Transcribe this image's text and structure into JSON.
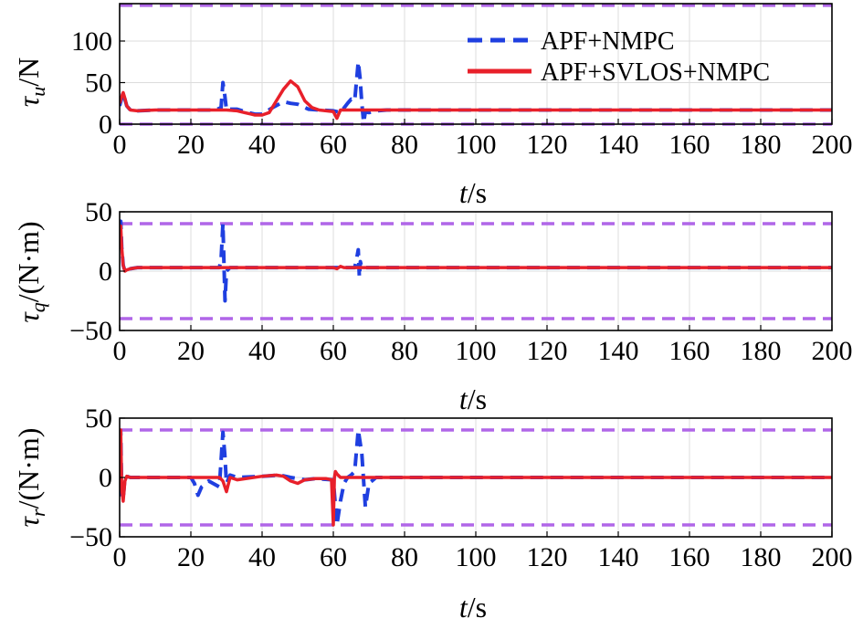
{
  "colors": {
    "apf_nmpc": "#1f3fe0",
    "apf_svlos_nmpc": "#e8202a",
    "limit": "#b066e8",
    "grid": "#dcdcdc"
  },
  "legend": {
    "items": [
      "APF+NMPC",
      "APF+SVLOS+NMPC"
    ]
  },
  "chart_data": [
    {
      "type": "line",
      "ylabel_sym": "τ",
      "ylabel_sub": "u",
      "ylabel_unit": "/N",
      "xlabel_var": "t",
      "xlabel_unit": "/s",
      "xlim": [
        0,
        200
      ],
      "ylim": [
        0,
        145
      ],
      "xticks": [
        0,
        20,
        40,
        60,
        80,
        100,
        120,
        140,
        160,
        180,
        200
      ],
      "yticks": [
        0,
        50,
        100
      ],
      "grid": true,
      "legend_position": "top-right",
      "limits": [
        0,
        143
      ],
      "series": [
        {
          "name": "APF+NMPC",
          "style": "dashed",
          "x": [
            0,
            0.5,
            1,
            1.5,
            2,
            3,
            5,
            10,
            20,
            25,
            27,
            28.5,
            29,
            29.5,
            30,
            31,
            33,
            36,
            38,
            40,
            43,
            46,
            48,
            50,
            53,
            56,
            60,
            62,
            64,
            65,
            66,
            67,
            67.5,
            68,
            68.5,
            69,
            70,
            72,
            75,
            80,
            100,
            150,
            200
          ],
          "y": [
            22,
            30,
            38,
            30,
            22,
            17,
            16,
            17,
            17,
            17,
            17,
            20,
            50,
            35,
            17,
            18,
            18,
            14,
            12,
            12,
            20,
            27,
            25,
            24,
            18,
            17,
            16,
            14,
            25,
            30,
            28,
            75,
            55,
            25,
            2,
            15,
            14,
            16,
            17,
            17,
            17,
            17,
            17
          ]
        },
        {
          "name": "APF+SVLOS+NMPC",
          "style": "solid",
          "x": [
            0,
            0.5,
            1,
            1.5,
            2,
            3,
            5,
            10,
            20,
            30,
            33,
            35,
            37,
            38,
            40,
            42,
            44,
            46,
            48,
            50,
            52,
            54,
            56,
            58,
            60,
            61,
            62,
            63,
            64,
            66,
            68,
            70,
            80,
            100,
            150,
            200
          ],
          "y": [
            25,
            32,
            38,
            31,
            22,
            17,
            16,
            17,
            17,
            17,
            16,
            14,
            12,
            11,
            11,
            14,
            28,
            42,
            52,
            45,
            28,
            20,
            17,
            16,
            15,
            7,
            17,
            17,
            17,
            17,
            17,
            17,
            17,
            17,
            17,
            17
          ]
        }
      ]
    },
    {
      "type": "line",
      "ylabel_sym": "τ",
      "ylabel_sub": "q",
      "ylabel_unit": "/(N·m)",
      "xlabel_var": "t",
      "xlabel_unit": "/s",
      "xlim": [
        0,
        200
      ],
      "ylim": [
        -50,
        50
      ],
      "xticks": [
        0,
        20,
        40,
        60,
        80,
        100,
        120,
        140,
        160,
        180,
        200
      ],
      "yticks": [
        -50,
        0,
        50
      ],
      "grid": true,
      "limits": [
        -40,
        40
      ],
      "series": [
        {
          "name": "APF+NMPC",
          "style": "dashed",
          "x": [
            0,
            0.3,
            0.6,
            1,
            1.5,
            2,
            3,
            5,
            10,
            28,
            28.5,
            29,
            29.3,
            29.6,
            30,
            31,
            40,
            60,
            65,
            66,
            66.5,
            67,
            67.3,
            67.6,
            68,
            69,
            70,
            80,
            100,
            150,
            200
          ],
          "y": [
            38,
            42,
            20,
            5,
            0,
            1,
            2,
            3,
            3,
            3,
            10,
            40,
            5,
            -25,
            0,
            3,
            3,
            3,
            3,
            3,
            10,
            18,
            -5,
            8,
            3,
            3,
            3,
            3,
            3,
            3,
            3
          ]
        },
        {
          "name": "APF+SVLOS+NMPC",
          "style": "solid",
          "x": [
            0,
            0.3,
            0.6,
            1,
            1.5,
            2,
            3,
            5,
            10,
            30,
            60,
            61,
            62,
            63,
            70,
            100,
            150,
            200
          ],
          "y": [
            35,
            38,
            20,
            5,
            0,
            1,
            2,
            3,
            3,
            3,
            3,
            2,
            4,
            3,
            3,
            3,
            3,
            3
          ]
        }
      ]
    },
    {
      "type": "line",
      "ylabel_sym": "τ",
      "ylabel_sub": "r",
      "ylabel_unit": "/(N·m)",
      "xlabel_var": "t",
      "xlabel_unit": "/s",
      "xlim": [
        0,
        200
      ],
      "ylim": [
        -50,
        50
      ],
      "xticks": [
        0,
        20,
        40,
        60,
        80,
        100,
        120,
        140,
        160,
        180,
        200
      ],
      "yticks": [
        -50,
        0,
        50
      ],
      "grid": true,
      "limits": [
        -40,
        40
      ],
      "series": [
        {
          "name": "APF+NMPC",
          "style": "dashed",
          "x": [
            0,
            0.3,
            0.6,
            1,
            1.5,
            2,
            3,
            10,
            20,
            21,
            22,
            23,
            25,
            28,
            29,
            29.5,
            30,
            31,
            33,
            40,
            45,
            48,
            52,
            55,
            60,
            61,
            62,
            63,
            64,
            65,
            66,
            67,
            68,
            69,
            70,
            72,
            80,
            100,
            150,
            200
          ],
          "y": [
            30,
            38,
            -15,
            -18,
            0,
            1,
            0,
            0,
            0,
            -5,
            -15,
            -8,
            -3,
            -8,
            38,
            20,
            -5,
            2,
            0,
            1,
            2,
            0,
            -2,
            -1,
            -2,
            -40,
            -20,
            -5,
            0,
            2,
            5,
            40,
            20,
            -25,
            -5,
            0,
            0,
            0,
            0,
            0
          ]
        },
        {
          "name": "APF+SVLOS+NMPC",
          "style": "solid",
          "x": [
            0,
            0.3,
            0.6,
            1,
            1.5,
            2,
            3,
            10,
            28,
            29,
            30,
            31,
            33,
            40,
            44,
            46,
            48,
            50,
            52,
            55,
            58,
            59.5,
            60,
            60.3,
            60.6,
            61,
            62,
            65,
            70,
            80,
            100,
            150,
            200
          ],
          "y": [
            35,
            40,
            -10,
            -20,
            -3,
            1,
            0,
            0,
            0,
            -3,
            -12,
            0,
            -2,
            1,
            2,
            1,
            -3,
            -5,
            -2,
            -1,
            -1,
            -2,
            -40,
            0,
            5,
            3,
            0,
            0,
            0,
            0,
            0,
            0,
            0
          ]
        }
      ]
    }
  ]
}
